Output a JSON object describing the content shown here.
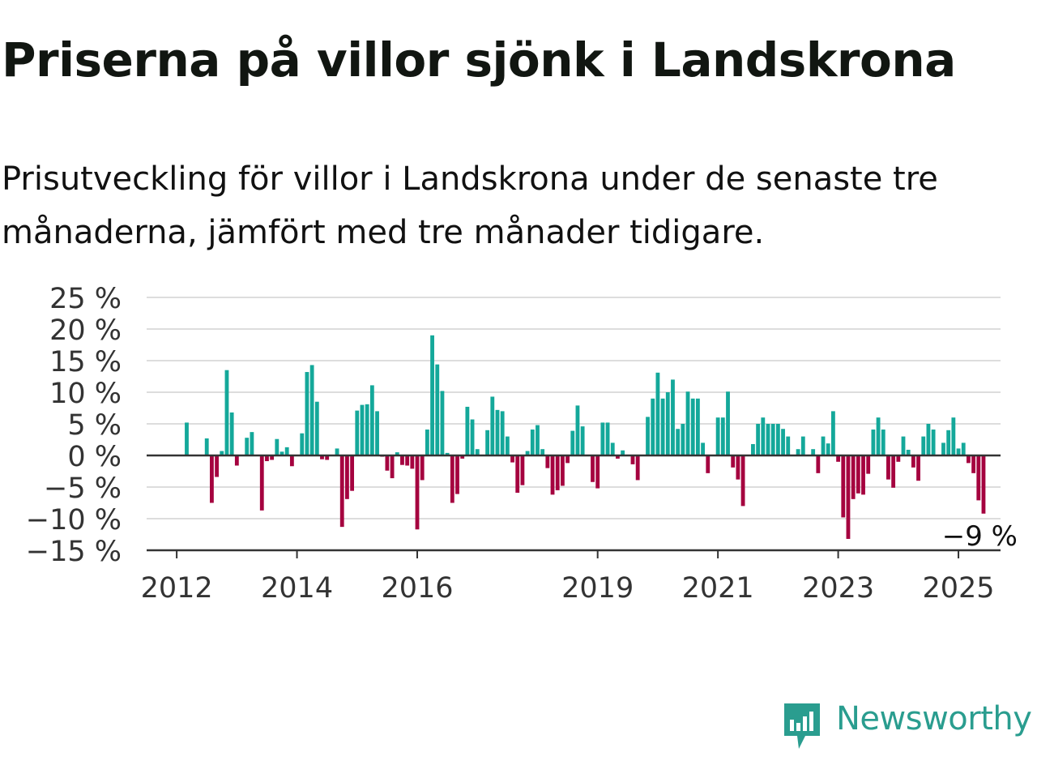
{
  "title": "Priserna på villor sjönk i Landskrona",
  "subtitle": "Prisutveckling för villor i Landskrona under de senaste tre månaderna, jämfört med tre månader tidigare.",
  "brand": {
    "name": "Newsworthy",
    "color": "#2a9d8f",
    "icon": "newsworthy-logo-icon"
  },
  "colors": {
    "positive": "#14a89a",
    "negative": "#a5023f",
    "grid": "#dddddd",
    "axis": "#333333"
  },
  "chart_data": {
    "type": "bar",
    "ylim": [
      -15,
      25
    ],
    "y_ticks": [
      25,
      20,
      15,
      10,
      5,
      0,
      -5,
      -10,
      -15
    ],
    "y_tick_labels": [
      "25 %",
      "20 %",
      "15 %",
      "10 %",
      "5 %",
      "0 %",
      "−5 %",
      "−10 %",
      "−15 %"
    ],
    "x_ticks": [
      2012,
      2014,
      2016,
      2019,
      2021,
      2023,
      2025
    ],
    "x_tick_labels": [
      "2012",
      "2014",
      "2016",
      "2019",
      "2021",
      "2023",
      "2025"
    ],
    "x_range": [
      2011.5,
      2025.7
    ],
    "grid": true,
    "start": "2012-01",
    "frequency": "monthly",
    "values": [
      0,
      0,
      5.2,
      0,
      0,
      0,
      2.7,
      -7.5,
      -3.4,
      0.7,
      13.5,
      6.8,
      -1.6,
      0,
      2.8,
      3.7,
      0,
      -8.7,
      -0.9,
      -0.7,
      2.6,
      0.6,
      1.3,
      -1.7,
      0,
      3.5,
      13.2,
      14.3,
      8.5,
      -0.6,
      -0.7,
      0,
      1.1,
      -11.3,
      -6.9,
      -5.6,
      7.1,
      8.0,
      8.1,
      11.1,
      7.0,
      -0.2,
      -2.4,
      -3.6,
      0.5,
      -1.5,
      -1.6,
      -2.1,
      -11.7,
      -3.9,
      4.1,
      19.0,
      14.4,
      10.2,
      0.4,
      -7.5,
      -6.1,
      -0.5,
      7.7,
      5.7,
      1.0,
      0,
      4.0,
      9.3,
      7.2,
      7.0,
      3.0,
      -1.1,
      -5.9,
      -4.7,
      0.7,
      4.1,
      4.8,
      1.0,
      -2.0,
      -6.2,
      -5.5,
      -4.8,
      -1.2,
      3.9,
      7.9,
      4.6,
      0,
      -4.2,
      -5.2,
      5.2,
      5.2,
      2.0,
      -0.5,
      0.8,
      0,
      -1.4,
      -3.9,
      0,
      6.1,
      9.0,
      13.1,
      9.0,
      10.0,
      12.0,
      4.2,
      5.0,
      10.1,
      9.0,
      9.0,
      2.0,
      -2.8,
      0,
      6.0,
      6.0,
      10.1,
      -1.9,
      -3.8,
      -8.0,
      0,
      1.8,
      5.0,
      6.0,
      5.0,
      5.0,
      5.0,
      4.2,
      3.0,
      0,
      1.0,
      3.0,
      0,
      1.0,
      -2.8,
      3.0,
      1.9,
      7.0,
      -1.0,
      -9.8,
      -13.2,
      -6.9,
      -6.0,
      -6.2,
      -2.9,
      4.1,
      6.0,
      4.1,
      -3.8,
      -5.1,
      -1.0,
      3.0,
      0.9,
      -1.9,
      -4.0,
      3.0,
      5.0,
      4.1,
      0,
      2.0,
      4.0,
      6.0,
      1.1,
      2.0,
      -1.2,
      -2.8,
      -7.1,
      -9.2
    ],
    "annotation": "−9 %"
  }
}
